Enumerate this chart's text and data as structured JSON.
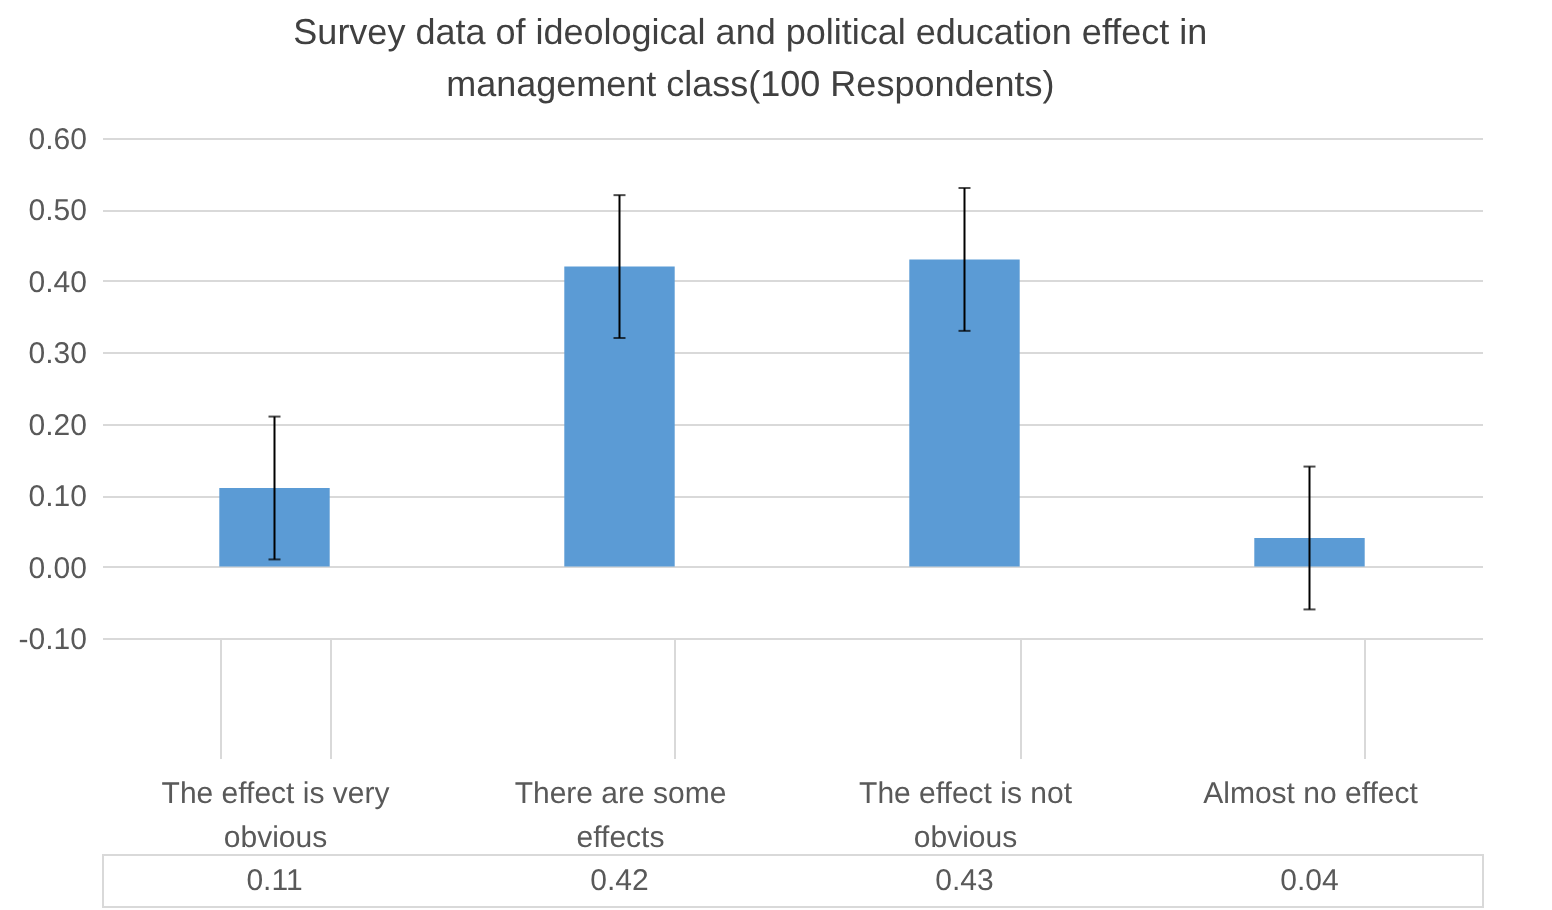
{
  "chart_data": {
    "type": "bar",
    "title": "Survey data of ideological and political education effect in management class(100 Respondents)",
    "categories": [
      "The effect is very obvious",
      "There are some effects",
      "The effect is not obvious",
      "Almost no effect"
    ],
    "values": [
      0.11,
      0.42,
      0.43,
      0.04
    ],
    "errors": [
      0.1,
      0.1,
      0.1,
      0.1
    ],
    "color": "#5b9bd5",
    "ylim": [
      -0.1,
      0.6
    ],
    "yticks": [
      {
        "value": -0.1,
        "label": "-0.10"
      },
      {
        "value": 0,
        "label": "0.00"
      },
      {
        "value": 0.1,
        "label": "0.10"
      },
      {
        "value": 0.2,
        "label": "0.20"
      },
      {
        "value": 0.3,
        "label": "0.30"
      },
      {
        "value": 0.4,
        "label": "0.40"
      },
      {
        "value": 0.5,
        "label": "0.50"
      },
      {
        "value": 0.6,
        "label": "0.60"
      }
    ],
    "grid": "y",
    "data_labels": true
  }
}
